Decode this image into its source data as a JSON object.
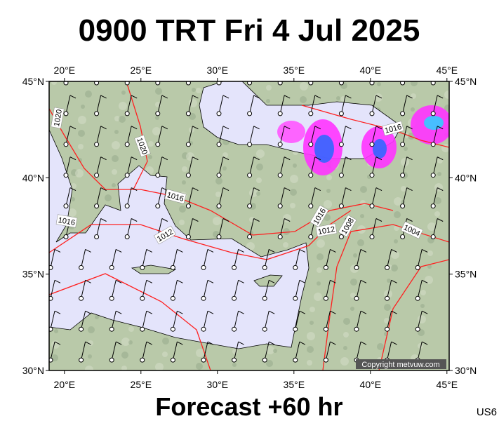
{
  "header": {
    "title": "0900 TRT Fri 4 Jul 2025"
  },
  "map": {
    "lon_labels": [
      "20°E",
      "25°E",
      "30°E",
      "35°E",
      "40°E",
      "45°E"
    ],
    "lat_labels": [
      "45°N",
      "40°N",
      "35°N",
      "30°N"
    ],
    "isobar_labels": [
      "1020",
      "1020",
      "1016",
      "1016",
      "1016",
      "1012",
      "1016",
      "1012",
      "1008",
      "1004"
    ],
    "copyright": "Copyright metvuw.com"
  },
  "footer": {
    "forecast": "Forecast +60 hr",
    "code": "US6"
  }
}
